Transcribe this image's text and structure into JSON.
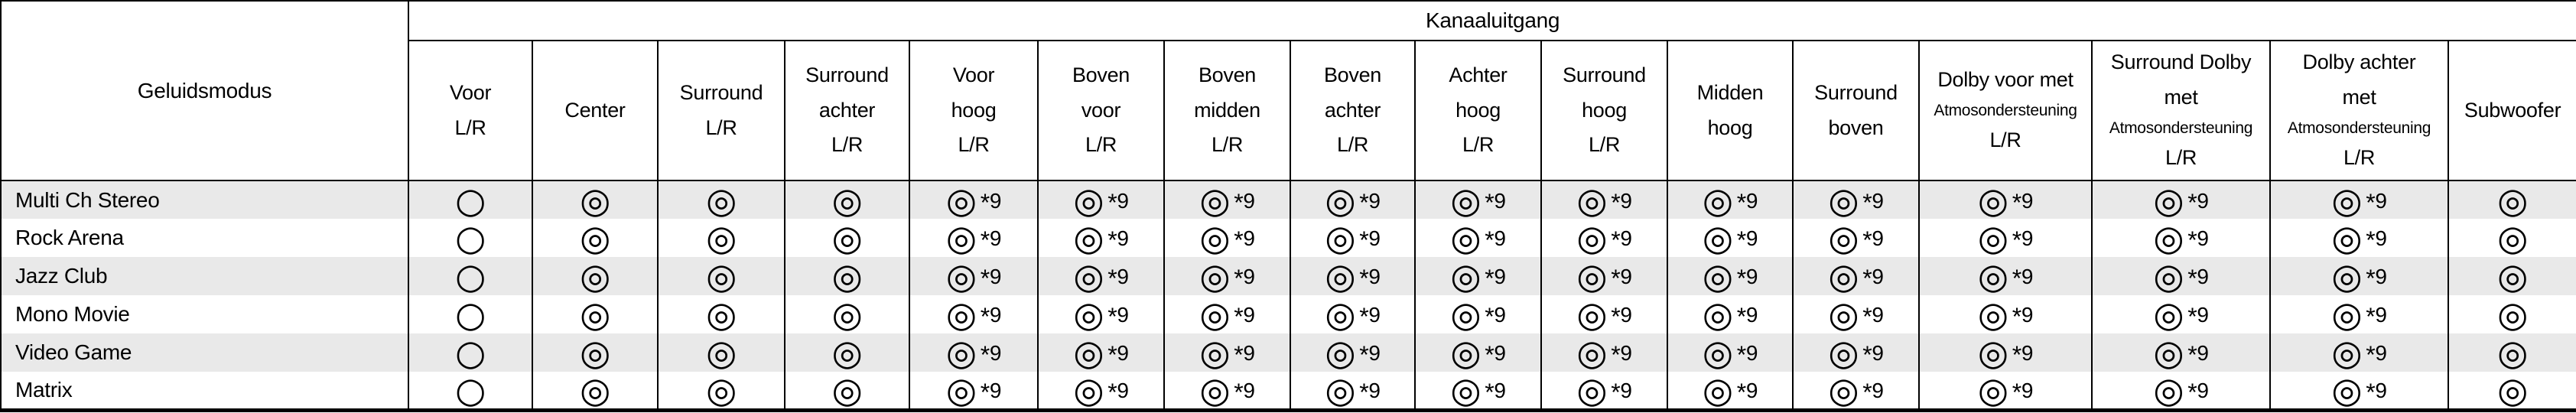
{
  "table": {
    "corner_header": "Geluidsmodus",
    "group_header": "Kanaaluitgang",
    "columns": [
      {
        "id": "voor-lr",
        "lines": [
          {
            "t": "Voor"
          },
          {
            "t": "L/R"
          }
        ]
      },
      {
        "id": "center",
        "lines": [
          {
            "t": "Center"
          }
        ]
      },
      {
        "id": "surround-lr",
        "lines": [
          {
            "t": "Surround"
          },
          {
            "t": "L/R"
          }
        ]
      },
      {
        "id": "surround-achter-lr",
        "lines": [
          {
            "t": "Surround"
          },
          {
            "t": "achter"
          },
          {
            "t": "L/R"
          }
        ]
      },
      {
        "id": "voor-hoog-lr",
        "lines": [
          {
            "t": "Voor"
          },
          {
            "t": "hoog"
          },
          {
            "t": "L/R"
          }
        ]
      },
      {
        "id": "boven-voor-lr",
        "lines": [
          {
            "t": "Boven"
          },
          {
            "t": "voor"
          },
          {
            "t": "L/R"
          }
        ]
      },
      {
        "id": "boven-midden-lr",
        "lines": [
          {
            "t": "Boven"
          },
          {
            "t": "midden"
          },
          {
            "t": "L/R"
          }
        ]
      },
      {
        "id": "boven-achter-lr",
        "lines": [
          {
            "t": "Boven"
          },
          {
            "t": "achter"
          },
          {
            "t": "L/R"
          }
        ]
      },
      {
        "id": "achter-hoog-lr",
        "lines": [
          {
            "t": "Achter"
          },
          {
            "t": "hoog"
          },
          {
            "t": "L/R"
          }
        ]
      },
      {
        "id": "surround-hoog-lr",
        "lines": [
          {
            "t": "Surround"
          },
          {
            "t": "hoog"
          },
          {
            "t": "L/R"
          }
        ]
      },
      {
        "id": "midden-hoog",
        "lines": [
          {
            "t": "Midden"
          },
          {
            "t": "hoog"
          }
        ]
      },
      {
        "id": "surround-boven",
        "lines": [
          {
            "t": "Surround"
          },
          {
            "t": "boven"
          }
        ]
      },
      {
        "id": "dolby-voor-met-atmos-lr",
        "lines": [
          {
            "t": "Dolby voor met"
          },
          {
            "t": "Atmosondersteuning",
            "small": true
          },
          {
            "t": "L/R"
          }
        ]
      },
      {
        "id": "surround-dolby-met-atmos-lr",
        "lines": [
          {
            "t": "Surround Dolby"
          },
          {
            "t": "met"
          },
          {
            "t": "Atmosondersteuning",
            "small": true
          },
          {
            "t": "L/R"
          }
        ]
      },
      {
        "id": "dolby-achter-met-atmos-lr",
        "lines": [
          {
            "t": "Dolby achter"
          },
          {
            "t": "met"
          },
          {
            "t": "Atmosondersteuning",
            "small": true
          },
          {
            "t": "L/R"
          }
        ]
      },
      {
        "id": "subwoofer",
        "lines": [
          {
            "t": "Subwoofer"
          }
        ]
      }
    ],
    "rows": [
      {
        "label": "Multi Ch Stereo",
        "cells": [
          "○",
          "◎",
          "◎",
          "◎",
          "◎*9",
          "◎*9",
          "◎*9",
          "◎*9",
          "◎*9",
          "◎*9",
          "◎*9",
          "◎*9",
          "◎*9",
          "◎*9",
          "◎*9",
          "◎"
        ]
      },
      {
        "label": "Rock Arena",
        "cells": [
          "○",
          "◎",
          "◎",
          "◎",
          "◎*9",
          "◎*9",
          "◎*9",
          "◎*9",
          "◎*9",
          "◎*9",
          "◎*9",
          "◎*9",
          "◎*9",
          "◎*9",
          "◎*9",
          "◎"
        ]
      },
      {
        "label": "Jazz Club",
        "cells": [
          "○",
          "◎",
          "◎",
          "◎",
          "◎*9",
          "◎*9",
          "◎*9",
          "◎*9",
          "◎*9",
          "◎*9",
          "◎*9",
          "◎*9",
          "◎*9",
          "◎*9",
          "◎*9",
          "◎"
        ]
      },
      {
        "label": "Mono Movie",
        "cells": [
          "○",
          "◎",
          "◎",
          "◎",
          "◎*9",
          "◎*9",
          "◎*9",
          "◎*9",
          "◎*9",
          "◎*9",
          "◎*9",
          "◎*9",
          "◎*9",
          "◎*9",
          "◎*9",
          "◎"
        ]
      },
      {
        "label": "Video Game",
        "cells": [
          "○",
          "◎",
          "◎",
          "◎",
          "◎*9",
          "◎*9",
          "◎*9",
          "◎*9",
          "◎*9",
          "◎*9",
          "◎*9",
          "◎*9",
          "◎*9",
          "◎*9",
          "◎*9",
          "◎"
        ]
      },
      {
        "label": "Matrix",
        "cells": [
          "○",
          "◎",
          "◎",
          "◎",
          "◎*9",
          "◎*9",
          "◎*9",
          "◎*9",
          "◎*9",
          "◎*9",
          "◎*9",
          "◎*9",
          "◎*9",
          "◎*9",
          "◎*9",
          "◎"
        ]
      }
    ],
    "symbols": {
      "single_circle": "○",
      "double_circle": "◎",
      "footnote": "*9"
    }
  },
  "colors": {
    "zebra_row": "#e9e9e9",
    "border": "#000000",
    "text": "#000000",
    "background": "#ffffff"
  }
}
